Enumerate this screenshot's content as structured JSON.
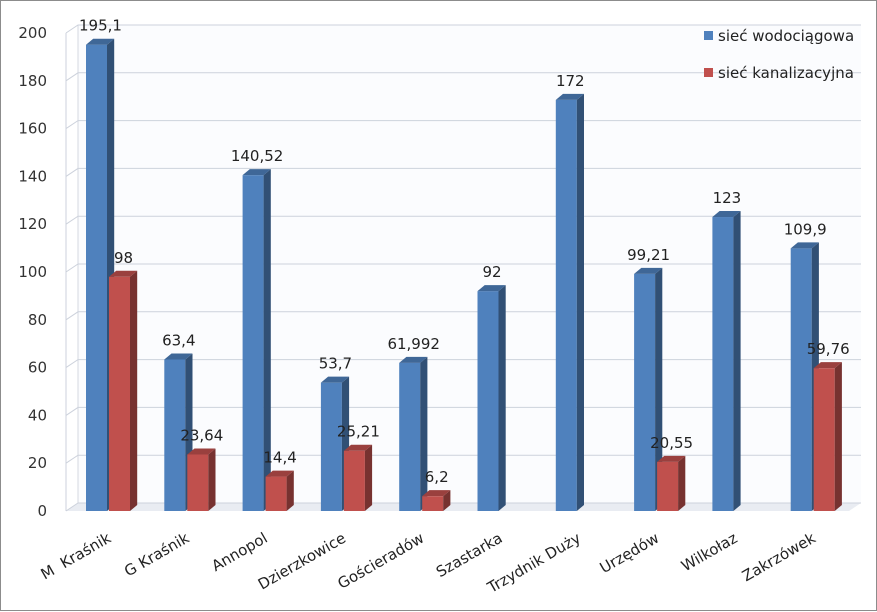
{
  "chart_data": {
    "type": "bar",
    "three_d": true,
    "title": "",
    "xlabel": "",
    "ylabel": "",
    "ylim": [
      0,
      200
    ],
    "yticks": [
      0,
      20,
      40,
      60,
      80,
      100,
      120,
      140,
      160,
      180,
      200
    ],
    "ytick_labels": [
      "0",
      "20",
      "40",
      "60",
      "80",
      "100",
      "120",
      "140",
      "160",
      "180",
      "200"
    ],
    "grid": true,
    "legend_position": "top-right",
    "categories": [
      "M  Kraśnik",
      "G Kraśnik",
      "Annopol",
      "Dzierzkowice",
      "Gościeradów",
      "Szastarka",
      "Trzydnik Duży",
      "Urzędów",
      "Wilkołaz",
      "Zakrzówek"
    ],
    "series": [
      {
        "name": "sieć wodociągowa",
        "color": "#4f81bd",
        "values": [
          195.1,
          63.4,
          140.52,
          53.7,
          61.992,
          92,
          172,
          99.21,
          123,
          109.9
        ],
        "labels": [
          "195,1",
          "63,4",
          "140,52",
          "53,7",
          "61,992",
          "92",
          "172",
          "99,21",
          "123",
          "109,9"
        ]
      },
      {
        "name": "sieć kanalizacyjna",
        "color": "#c0504d",
        "values": [
          98,
          23.64,
          14.4,
          25.21,
          6.2,
          null,
          null,
          20.55,
          null,
          59.76
        ],
        "labels": [
          "98",
          "23,64",
          "14,4",
          "25,21",
          "6,2",
          "",
          "",
          "20,55",
          "",
          "59,76"
        ]
      }
    ]
  }
}
